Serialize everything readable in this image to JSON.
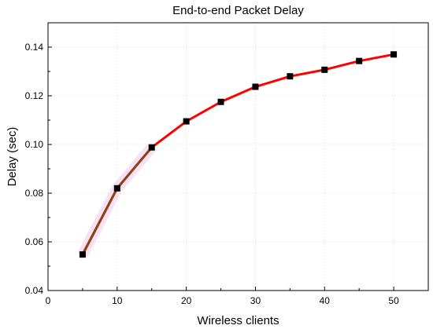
{
  "chart_data": {
    "type": "line",
    "title": "End-to-end Packet Delay",
    "xlabel": "Wireless clients",
    "ylabel": "Delay (sec)",
    "xlim": [
      0,
      55
    ],
    "ylim": [
      0.04,
      0.15
    ],
    "xticks": [
      0,
      10,
      20,
      30,
      40,
      50
    ],
    "yticks": [
      0.04,
      0.06,
      0.08,
      0.1,
      0.12,
      0.14
    ],
    "ytick_labels": [
      "0.04",
      "0.06",
      "0.08",
      "0.10",
      "0.12",
      "0.14"
    ],
    "grid": true,
    "series": [
      {
        "x": [
          5,
          10,
          15,
          20,
          25,
          30,
          35,
          40,
          45,
          50
        ],
        "y": [
          0.0548,
          0.082,
          0.0988,
          0.1095,
          0.1175,
          0.1237,
          0.128,
          0.1307,
          0.1343,
          0.137
        ],
        "color": "#ff0000",
        "marker": "square",
        "marker_color": "#000000",
        "highlight_color": "#8b4513"
      }
    ]
  }
}
